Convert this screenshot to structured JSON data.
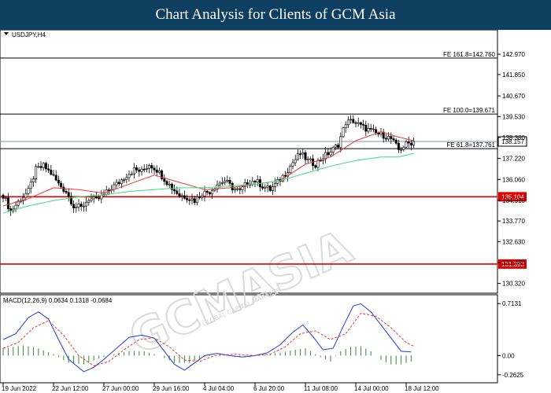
{
  "header": {
    "title": "Chart Analysis for Clients of GCM Asia"
  },
  "watermark": {
    "brand": "GCMASIA",
    "tagline": "GLOBAL CAPITAL MARKETS"
  },
  "chart_data": {
    "type": "candlestick",
    "symbol_label": "USDJPY,H4",
    "price_axis": {
      "ylim": [
        130.0,
        144.1
      ],
      "tick_labels": [
        "142.970",
        "141.850",
        "140.670",
        "139.530",
        "138.380",
        "137.220",
        "136.060",
        "134.910",
        "133.770",
        "132.630",
        "131.480",
        "130.320"
      ],
      "tick_values": [
        142.97,
        141.85,
        140.67,
        139.53,
        138.38,
        137.22,
        136.06,
        134.91,
        133.77,
        132.63,
        131.48,
        130.32
      ]
    },
    "x_axis": {
      "tick_labels": [
        "19 Jun 2022",
        "22 Jun 12:00",
        "27 Jun 00:00",
        "29 Jun 16:00",
        "4 Jul 04:00",
        "6 Jul 20:00",
        "11 Jul 08:00",
        "14 Jul 00:00",
        "18 Jul 12:00"
      ],
      "tick_index": [
        0,
        20,
        40,
        60,
        80,
        100,
        120,
        140,
        160
      ]
    },
    "current_price": {
      "label": "138.157",
      "value": 138.157
    },
    "fibonacci_levels": [
      {
        "label": "FE 161.8=142.760",
        "value": 142.76
      },
      {
        "label": "FE 100.0=139.671",
        "value": 139.671
      },
      {
        "label": "FE 61.8=137.761",
        "value": 137.761
      }
    ],
    "support_levels": [
      {
        "label": "135.104",
        "value": 135.104
      },
      {
        "label": "131.393",
        "value": 131.393
      }
    ],
    "close_path": [
      [
        0,
        135.2
      ],
      [
        3,
        134.3
      ],
      [
        7,
        135.0
      ],
      [
        10,
        135.4
      ],
      [
        13,
        136.6
      ],
      [
        16,
        136.8
      ],
      [
        19,
        136.4
      ],
      [
        22,
        135.8
      ],
      [
        25,
        135.4
      ],
      [
        28,
        134.6
      ],
      [
        31,
        134.5
      ],
      [
        34,
        135.0
      ],
      [
        37,
        134.9
      ],
      [
        40,
        135.2
      ],
      [
        43,
        135.6
      ],
      [
        46,
        135.9
      ],
      [
        49,
        136.3
      ],
      [
        52,
        136.6
      ],
      [
        55,
        136.5
      ],
      [
        58,
        136.9
      ],
      [
        61,
        136.6
      ],
      [
        64,
        136.1
      ],
      [
        67,
        135.6
      ],
      [
        70,
        135.2
      ],
      [
        73,
        135.1
      ],
      [
        76,
        134.9
      ],
      [
        79,
        135.3
      ],
      [
        82,
        135.4
      ],
      [
        85,
        135.8
      ],
      [
        88,
        136.0
      ],
      [
        91,
        135.6
      ],
      [
        94,
        135.4
      ],
      [
        97,
        135.9
      ],
      [
        100,
        136.0
      ],
      [
        103,
        135.7
      ],
      [
        106,
        135.5
      ],
      [
        109,
        135.9
      ],
      [
        112,
        136.4
      ],
      [
        115,
        137.0
      ],
      [
        118,
        137.5
      ],
      [
        121,
        137.1
      ],
      [
        124,
        136.9
      ],
      [
        127,
        137.3
      ],
      [
        130,
        137.6
      ],
      [
        133,
        138.0
      ],
      [
        136,
        139.2
      ],
      [
        139,
        139.3
      ],
      [
        142,
        139.0
      ],
      [
        145,
        138.8
      ],
      [
        148,
        138.6
      ],
      [
        151,
        138.5
      ],
      [
        154,
        138.3
      ],
      [
        157,
        137.7
      ],
      [
        160,
        138.0
      ],
      [
        163,
        138.157
      ]
    ],
    "ma_red_path": [
      [
        0,
        134.6
      ],
      [
        10,
        135.0
      ],
      [
        20,
        135.6
      ],
      [
        30,
        135.5
      ],
      [
        40,
        135.3
      ],
      [
        50,
        135.8
      ],
      [
        60,
        136.3
      ],
      [
        70,
        135.9
      ],
      [
        80,
        135.5
      ],
      [
        90,
        135.6
      ],
      [
        100,
        135.8
      ],
      [
        110,
        136.0
      ],
      [
        120,
        136.9
      ],
      [
        130,
        137.3
      ],
      [
        140,
        138.2
      ],
      [
        150,
        138.7
      ],
      [
        157,
        138.4
      ],
      [
        163,
        138.2
      ]
    ],
    "ma_green_path": [
      [
        0,
        134.2
      ],
      [
        10,
        134.6
      ],
      [
        20,
        134.9
      ],
      [
        30,
        135.1
      ],
      [
        40,
        135.2
      ],
      [
        50,
        135.4
      ],
      [
        60,
        135.5
      ],
      [
        70,
        135.6
      ],
      [
        80,
        135.6
      ],
      [
        90,
        135.7
      ],
      [
        100,
        135.8
      ],
      [
        110,
        136.0
      ],
      [
        120,
        136.4
      ],
      [
        130,
        136.8
      ],
      [
        140,
        137.1
      ],
      [
        150,
        137.3
      ],
      [
        157,
        137.3
      ],
      [
        163,
        137.5
      ]
    ],
    "macd": {
      "label": "MACD(12,26,9) 0.0634 0.1318 -0.0684",
      "ylim": [
        -0.34,
        0.78
      ],
      "tick_labels": [
        "0.7131",
        "0.00",
        "-0.2625"
      ],
      "tick_values": [
        0.7131,
        0.0,
        -0.2625
      ],
      "macd_path": [
        [
          0,
          0.22
        ],
        [
          5,
          0.3
        ],
        [
          10,
          0.52
        ],
        [
          14,
          0.6
        ],
        [
          18,
          0.5
        ],
        [
          22,
          0.22
        ],
        [
          26,
          -0.05
        ],
        [
          32,
          -0.22
        ],
        [
          36,
          -0.16
        ],
        [
          40,
          -0.05
        ],
        [
          45,
          0.1
        ],
        [
          50,
          0.25
        ],
        [
          55,
          0.28
        ],
        [
          60,
          0.24
        ],
        [
          64,
          0.06
        ],
        [
          68,
          -0.12
        ],
        [
          72,
          -0.2
        ],
        [
          76,
          -0.1
        ],
        [
          80,
          0.0
        ],
        [
          85,
          0.03
        ],
        [
          90,
          0.0
        ],
        [
          95,
          -0.02
        ],
        [
          100,
          0.0
        ],
        [
          105,
          0.04
        ],
        [
          110,
          0.15
        ],
        [
          115,
          0.32
        ],
        [
          119,
          0.42
        ],
        [
          123,
          0.26
        ],
        [
          127,
          0.08
        ],
        [
          131,
          0.1
        ],
        [
          135,
          0.4
        ],
        [
          139,
          0.68
        ],
        [
          142,
          0.71
        ],
        [
          146,
          0.6
        ],
        [
          150,
          0.42
        ],
        [
          154,
          0.24
        ],
        [
          158,
          0.06
        ],
        [
          162,
          0.05
        ]
      ],
      "signal_path": [
        [
          0,
          0.1
        ],
        [
          6,
          0.18
        ],
        [
          12,
          0.38
        ],
        [
          18,
          0.48
        ],
        [
          24,
          0.28
        ],
        [
          30,
          0.0
        ],
        [
          36,
          -0.14
        ],
        [
          42,
          -0.08
        ],
        [
          48,
          0.08
        ],
        [
          54,
          0.22
        ],
        [
          60,
          0.24
        ],
        [
          66,
          0.12
        ],
        [
          72,
          -0.06
        ],
        [
          78,
          -0.08
        ],
        [
          84,
          0.0
        ],
        [
          92,
          0.02
        ],
        [
          100,
          0.0
        ],
        [
          106,
          0.02
        ],
        [
          112,
          0.12
        ],
        [
          118,
          0.3
        ],
        [
          124,
          0.34
        ],
        [
          130,
          0.22
        ],
        [
          136,
          0.3
        ],
        [
          142,
          0.58
        ],
        [
          148,
          0.54
        ],
        [
          154,
          0.38
        ],
        [
          160,
          0.18
        ],
        [
          163,
          0.13
        ]
      ],
      "hist_path": [
        [
          0,
          0.1
        ],
        [
          8,
          0.14
        ],
        [
          14,
          0.1
        ],
        [
          20,
          0.02
        ],
        [
          26,
          -0.1
        ],
        [
          32,
          -0.12
        ],
        [
          38,
          -0.04
        ],
        [
          44,
          0.02
        ],
        [
          50,
          0.06
        ],
        [
          56,
          0.06
        ],
        [
          62,
          0.0
        ],
        [
          68,
          -0.1
        ],
        [
          74,
          -0.1
        ],
        [
          80,
          -0.02
        ],
        [
          86,
          0.02
        ],
        [
          92,
          -0.02
        ],
        [
          98,
          -0.02
        ],
        [
          104,
          0.02
        ],
        [
          110,
          0.04
        ],
        [
          116,
          0.08
        ],
        [
          120,
          0.1
        ],
        [
          126,
          -0.02
        ],
        [
          130,
          -0.08
        ],
        [
          134,
          0.06
        ],
        [
          138,
          0.12
        ],
        [
          142,
          0.13
        ],
        [
          146,
          0.06
        ],
        [
          150,
          -0.06
        ],
        [
          154,
          -0.12
        ],
        [
          158,
          -0.12
        ],
        [
          163,
          -0.07
        ]
      ]
    }
  }
}
